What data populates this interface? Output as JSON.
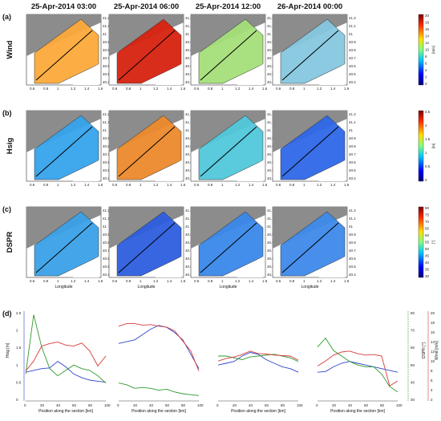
{
  "figure": {
    "dates": [
      "25-Apr-2014   03:00",
      "25-Apr-2014   06:00",
      "25-Apr-2014   12:00",
      "26-Apr-2014   00:00"
    ],
    "rows": [
      {
        "tag": "(a)",
        "name": "Wind",
        "cbar_unit": "[m/s]",
        "cbar_ticks": [
          "20",
          "18",
          "16",
          "14",
          "12",
          "10",
          "8",
          "6",
          "4",
          "2",
          "0"
        ],
        "colors": [
          "#fcaa3a",
          "#d8220f",
          "#a6e07a",
          "#86c8e0"
        ]
      },
      {
        "tag": "(b)",
        "name": "Hsig",
        "cbar_unit": "[m]",
        "cbar_ticks": [
          "2.5",
          "2",
          "1.5",
          "1",
          "0.5",
          "0"
        ],
        "colors": [
          "#36a4ec",
          "#ed8a2c",
          "#52c8dc",
          "#2f68e8"
        ]
      },
      {
        "tag": "(c)",
        "name": "DSPR",
        "cbar_unit": "[°]",
        "cbar_ticks": [
          "80",
          "75",
          "70",
          "65",
          "60",
          "55",
          "50",
          "45",
          "40",
          "35",
          "30"
        ],
        "colors": [
          "#3aa2e8",
          "#2e5ee0",
          "#3a88ea",
          "#3e8aea"
        ]
      }
    ],
    "map_y_ticks": [
      "41.2",
      "41.1",
      "41",
      "40.9",
      "40.8",
      "40.7",
      "40.6",
      "40.5",
      "40.4"
    ],
    "map_x_ticks": [
      "0.6",
      "0.8",
      "1",
      "1.2",
      "1.4",
      "1.6"
    ],
    "map_xlabel": "Longitude",
    "bottom_tag": "(d)",
    "line_xlabel": "Position along the section [km]",
    "line_x_ticks": [
      "0",
      "20",
      "40",
      "60",
      "80",
      "100"
    ],
    "left_axis": {
      "label": "Hsig [m]",
      "ticks": [
        "2.5",
        "2",
        "1.5",
        "1",
        "0.5",
        "0"
      ]
    },
    "right_axis_dspr": {
      "label": "DSPR [°]",
      "ticks": [
        "80",
        "70",
        "60",
        "50",
        "40",
        "30"
      ]
    },
    "right_axis_wind": {
      "label": "Wind [m/s]",
      "ticks": [
        "20",
        "18",
        "16",
        "14",
        "12",
        "10",
        "8",
        "6",
        "4",
        "2"
      ]
    }
  },
  "chart_data": {
    "type": "line",
    "x": [
      0,
      10,
      20,
      30,
      40,
      50,
      60,
      70,
      80,
      90,
      100
    ],
    "xlabel": "Position along the section [km]",
    "xlim": [
      0,
      100
    ],
    "panels": [
      {
        "date": "25-Apr-2014 03:00",
        "series": [
          {
            "name": "Hsig",
            "axis": "Hsig [m]",
            "color": "#3344cc",
            "values": [
              0.8,
              0.85,
              0.9,
              0.92,
              1.1,
              0.95,
              0.75,
              0.65,
              0.58,
              0.55,
              0.52
            ]
          },
          {
            "name": "DSPR",
            "axis": "DSPR [°]",
            "color": "#2e9a2e",
            "values": [
              45,
              78,
              60,
              48,
              44,
              47,
              50,
              48,
              47,
              44,
              40
            ]
          },
          {
            "name": "Wind",
            "axis": "Wind [m/s]",
            "color": "#d83a3a",
            "values": [
              8,
              10,
              13,
              13.5,
              13.8,
              13.2,
              13,
              13.6,
              12,
              9,
              11
            ]
          }
        ]
      },
      {
        "date": "25-Apr-2014 06:00",
        "series": [
          {
            "name": "Hsig",
            "axis": "Hsig [m]",
            "color": "#3344cc",
            "values": [
              1.6,
              1.65,
              1.7,
              1.85,
              2.0,
              2.1,
              2.05,
              1.9,
              1.7,
              1.3,
              0.9
            ]
          },
          {
            "name": "DSPR",
            "axis": "DSPR [°]",
            "color": "#2e9a2e",
            "values": [
              40,
              39,
              37,
              37.5,
              37,
              36,
              36.5,
              35,
              34,
              33.5,
              33
            ]
          },
          {
            "name": "Wind",
            "axis": "Wind [m/s]",
            "color": "#d83a3a",
            "values": [
              17,
              17.5,
              17.5,
              17.2,
              17.3,
              17,
              16.8,
              16,
              14,
              12,
              8
            ]
          }
        ]
      },
      {
        "date": "25-Apr-2014 12:00",
        "series": [
          {
            "name": "Hsig",
            "axis": "Hsig [m]",
            "color": "#3344cc",
            "values": [
              1.0,
              1.05,
              1.1,
              1.25,
              1.35,
              1.3,
              1.15,
              1.05,
              0.95,
              0.9,
              0.8
            ]
          },
          {
            "name": "DSPR",
            "axis": "DSPR [°]",
            "color": "#2e9a2e",
            "values": [
              55,
              55,
              54,
              53,
              54.5,
              55,
              55.5,
              56,
              55,
              54,
              52
            ]
          },
          {
            "name": "Wind",
            "axis": "Wind [m/s]",
            "color": "#d83a3a",
            "values": [
              10,
              10.5,
              10.8,
              11.3,
              12,
              11.5,
              11.4,
              11.2,
              11.1,
              11,
              10.2
            ]
          }
        ]
      },
      {
        "date": "26-Apr-2014 00:00",
        "series": [
          {
            "name": "Hsig",
            "axis": "Hsig [m]",
            "color": "#3344cc",
            "values": [
              0.8,
              0.82,
              0.95,
              1.05,
              1.1,
              1.05,
              1.0,
              0.95,
              0.9,
              0.85,
              0.8
            ]
          },
          {
            "name": "DSPR",
            "axis": "DSPR [°]",
            "color": "#2e9a2e",
            "values": [
              60,
              65,
              58,
              55,
              52,
              50,
              49,
              49,
              45,
              38,
              35
            ]
          },
          {
            "name": "Wind",
            "axis": "Wind [m/s]",
            "color": "#d83a3a",
            "values": [
              9,
              10,
              11.2,
              11.8,
              12,
              11.5,
              11.2,
              11.3,
              11,
              5,
              6
            ]
          }
        ]
      }
    ],
    "axes": {
      "Hsig [m]": {
        "range": [
          0,
          2.5
        ]
      },
      "DSPR [°]": {
        "range": [
          30,
          80
        ]
      },
      "Wind [m/s]": {
        "range": [
          2,
          20
        ]
      }
    }
  }
}
